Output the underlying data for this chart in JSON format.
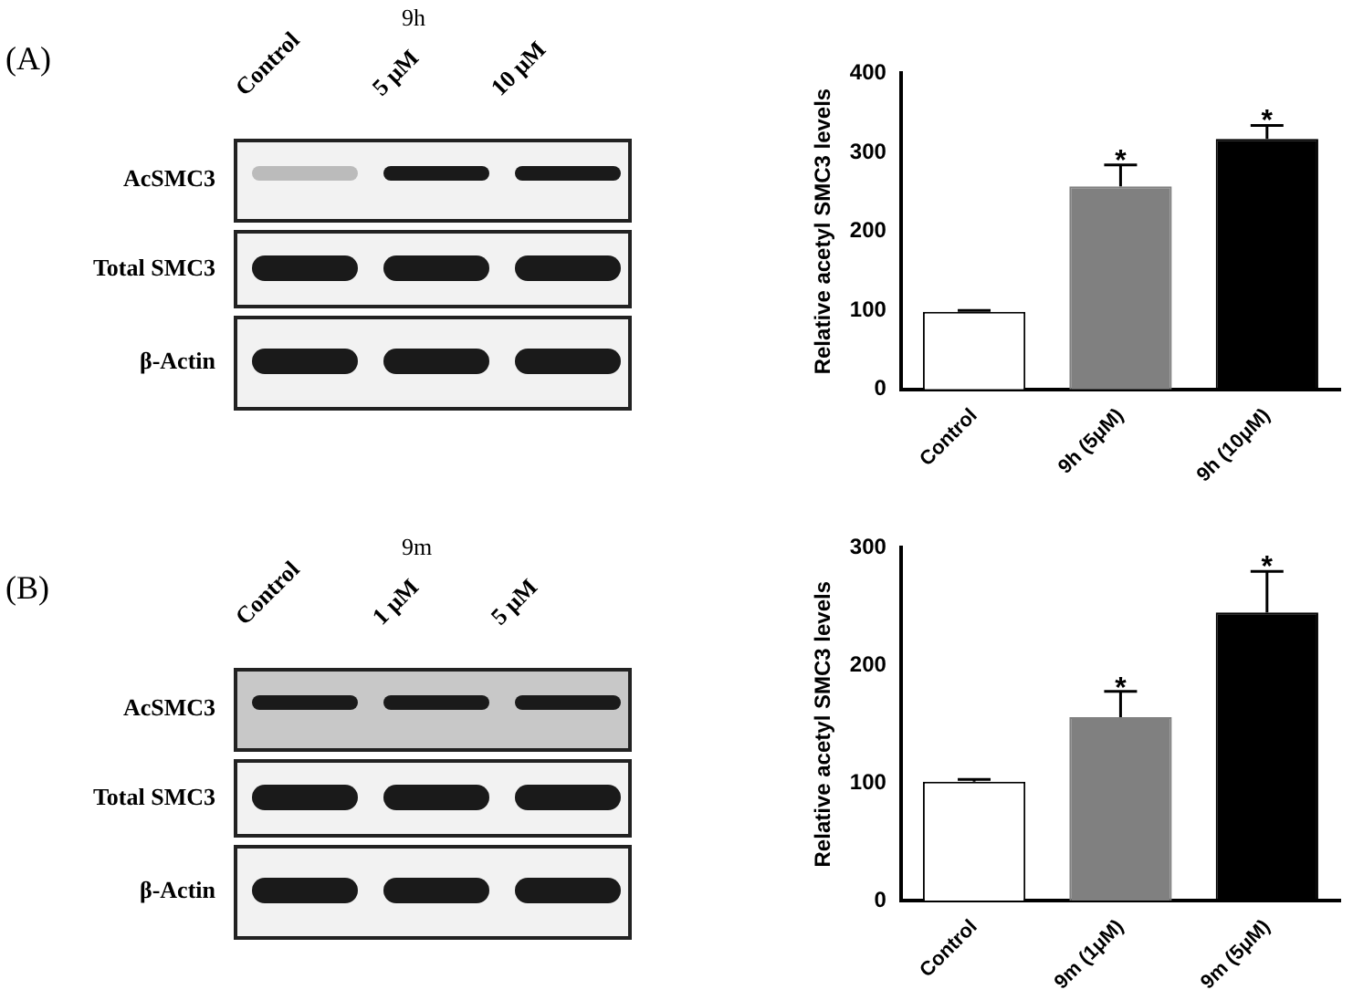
{
  "chart_data": [
    {
      "type": "other",
      "title": "9h",
      "annotations": [
        "(A)"
      ],
      "categories": [
        "Control",
        "5 μM",
        "10 μM"
      ],
      "y_categories": [
        "AcSMC3",
        "Total SMC3",
        "β-Actin"
      ]
    },
    {
      "type": "bar",
      "ylabel": "Relative acetyl SMC3 levels",
      "categories": [
        "Control",
        "9h (5μM)",
        "9h (10μM)"
      ],
      "values": [
        98,
        257,
        317
      ],
      "errors": [
        2,
        27,
        17
      ],
      "colors": [
        "#ffffff",
        "#808080",
        "#000000"
      ],
      "ylim": [
        0,
        400
      ],
      "yticks": [
        0,
        100,
        200,
        300,
        400
      ],
      "grid": false,
      "annotations": [
        {
          "text": "*",
          "x": "9h (5μM)",
          "y": 284
        },
        {
          "text": "*",
          "x": "9h (10μM)",
          "y": 334
        }
      ]
    },
    {
      "type": "other",
      "title": "9m",
      "annotations": [
        "(B)"
      ],
      "categories": [
        "Control",
        "1 μM",
        "5 μM"
      ],
      "y_categories": [
        "AcSMC3",
        "Total SMC3",
        "β-Actin"
      ]
    },
    {
      "type": "bar",
      "ylabel": "Relative acetyl SMC3 levels",
      "categories": [
        "Control",
        "9m (1μM)",
        "9m (5μM)"
      ],
      "values": [
        101,
        156,
        245
      ],
      "errors": [
        2,
        22,
        35
      ],
      "colors": [
        "#ffffff",
        "#808080",
        "#000000"
      ],
      "ylim": [
        0,
        300
      ],
      "yticks": [
        0,
        100,
        200,
        300
      ],
      "grid": false,
      "annotations": [
        {
          "text": "*",
          "x": "9m (1μM)",
          "y": 177
        },
        {
          "text": "*",
          "x": "9m (5μM)",
          "y": 280
        }
      ]
    }
  ]
}
